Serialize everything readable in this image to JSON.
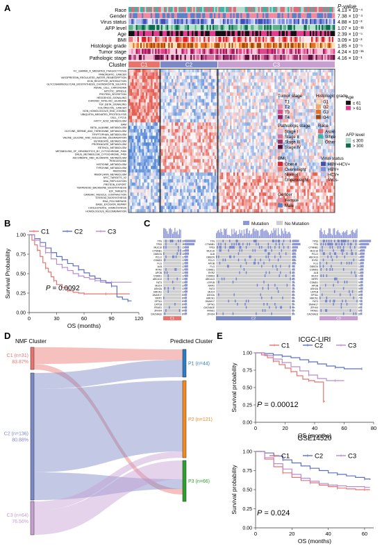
{
  "panels": {
    "A": "A",
    "B": "B",
    "C": "C",
    "D": "D",
    "E": "E"
  },
  "panel_a": {
    "pvalue_header": "P-value",
    "annotation_rows": [
      {
        "name": "Race",
        "pvalue": "4.13 × 10⁻⁴"
      },
      {
        "name": "Gender",
        "pvalue": "7.38 × 10⁻⁴"
      },
      {
        "name": "Virus status",
        "pvalue": "4.88 × 10⁻³"
      },
      {
        "name": "AFP level",
        "pvalue": "1.07 × 10⁻¹¹"
      },
      {
        "name": "Age",
        "pvalue": "2.39 × 10⁻⁵"
      },
      {
        "name": "BMI",
        "pvalue": "3.09 × 10⁻³"
      },
      {
        "name": "Histologic grade",
        "pvalue": "1.85 × 10⁻⁵"
      },
      {
        "name": "Tumor stage",
        "pvalue": "4.24 × 10⁻¹¹"
      },
      {
        "name": "Pathologic stage",
        "pvalue": "4.16 × 10⁻¹"
      }
    ],
    "cluster_label": "Cluster",
    "clusters": [
      {
        "name": "C1",
        "color": "#e8736c"
      },
      {
        "name": "C2",
        "color": "#7b88c6"
      },
      {
        "name": "C3",
        "color": "#c69ed2"
      }
    ],
    "pathways": [
      "FC_GAMMA_R_MEDIATED_PHAGOCYTOSIS",
      "PANCREATIC_CANCER",
      "VASOPRESSIN_REGULATED_WATER_REABSORPTION",
      "ECM_RECEPTOR_INTERACTION",
      "GLYCOSAMINOGLYCAN_BIOSYNTHESIS_CHONDROITIN_SULFATE",
      "RENAL_CELL_CARCINOMA",
      "MITOTIC_SPINDLE",
      "PROTEIN_SECRETION",
      "HEDGEHOG_SIGNALING",
      "CHRONIC_MYELOID_LEUKEMIA",
      "TGF_BETA_SIGNALING",
      "COLORECTAL_CANCER",
      "NON_HOMOLOGOUS_END_JOINING",
      "UBIQUITIN_MEDIATED_PROTEOLYSIS",
      "CELL_CYCLE",
      "FATTY_ACID_METABOLISM",
      "BAM",
      "BETA_ALANINE_METABOLISM",
      "GLYCINE_SERINE_AND_THREONINE_METABOLISM",
      "TRYPTOPHAN_METABOLISM",
      "VALINE_LEUCINE_AND_ISOLEUCINE_DEGRADATION",
      "BUTANOATE_METABOLISM",
      "PROPANOATE_METABOLISM",
      "RETINOL_METABOLISM",
      "METABOLISM_OF_XENOBIOTICS_BY_CYTOCHROME_P450",
      "DRUG_METABOLISM_CYTOCHROME_P450",
      "ASCORBATE_AND_ALDARATE_METABOLISM",
      "PEROXISOME",
      "HISTIDINE_METABOLISM",
      "TYROSINE_METABOLISM",
      "RIBOSOME",
      "RIBOFLAVIN_METABOLISM",
      "MYC_TARGETS_V2",
      "DNA_REPLICATION",
      "PROTEIN_EXPORT",
      "TERPENOID_BACKBONE_BIOSYNTHESIS",
      "E2F_TARGETS",
      "CARDIAC_MUSCLE_CONTRACTION",
      "STEROID_BIOSYNTHESIS",
      "RNA_POLYMERASE",
      "BASE_EXCISION_REPAIR",
      "CHOLESTEROL_HOMEOSTASIS",
      "HOMOLOGOUS_RECOMBINATION"
    ],
    "legends": [
      {
        "title": "Tumor stage",
        "items": [
          {
            "label": "T1",
            "color": "#f9c9dc"
          },
          {
            "label": "T2",
            "color": "#f08ab5"
          },
          {
            "label": "T3",
            "color": "#e0478c"
          },
          {
            "label": "T4",
            "color": "#9d1a5c"
          }
        ]
      },
      {
        "title": "Histologic grade",
        "items": [
          {
            "label": "G1",
            "color": "#fde0b8"
          },
          {
            "label": "G2",
            "color": "#f8a65c"
          },
          {
            "label": "G3",
            "color": "#e8701f"
          },
          {
            "label": "G4",
            "color": "#a34a0a"
          }
        ]
      },
      {
        "title": "Age",
        "items": [
          {
            "label": "≤ 61",
            "color": "#111111"
          },
          {
            "label": "> 61",
            "color": "#e23c8e"
          }
        ]
      },
      {
        "title": "Pathologic stage",
        "items": [
          {
            "label": "Stage I",
            "color": "#f3b6d2"
          },
          {
            "label": "Stage II",
            "color": "#d46c9f"
          },
          {
            "label": "Stage III",
            "color": "#99306b"
          },
          {
            "label": "Stage IV",
            "color": "#5a0f3b"
          }
        ]
      },
      {
        "title": "Race",
        "items": [
          {
            "label": "Asian",
            "color": "#e2697a"
          },
          {
            "label": "White",
            "color": "#3eb3a5"
          },
          {
            "label": "Other",
            "color": "#b6d8cb"
          }
        ]
      },
      {
        "title": "AFP level",
        "items": [
          {
            "label": "≤ 300",
            "color": "#b3e3cc"
          },
          {
            "label": "> 300",
            "color": "#0e6b4f"
          }
        ]
      },
      {
        "title": "BMI",
        "items": [
          {
            "label": "Obese",
            "color": "#e01f28"
          },
          {
            "label": "Overweight",
            "color": "#f07a7a"
          },
          {
            "label": "Normal",
            "color": "#f9c4c4"
          },
          {
            "label": "Underweight",
            "color": "#fde9e9"
          }
        ]
      },
      {
        "title": "Virus status",
        "items": [
          {
            "label": "HBV+HCV+",
            "color": "#3f51b5"
          },
          {
            "label": "HBV+",
            "color": "#7c8de0"
          },
          {
            "label": "HCV+",
            "color": "#b5c0f0"
          },
          {
            "label": "Virus-",
            "color": "#e3e7fa"
          }
        ]
      },
      {
        "title": "Gender",
        "items": [
          {
            "label": "Female",
            "color": "#f08aa0"
          },
          {
            "label": "Male",
            "color": "#5b80c7"
          }
        ]
      }
    ]
  },
  "chart_data": [
    {
      "type": "line",
      "panel": "B",
      "xlabel": "OS (months)",
      "ylabel": "Survival Probability",
      "xlim": [
        0,
        120
      ],
      "ylim": [
        0,
        1
      ],
      "xticks": [
        0,
        30,
        60,
        90,
        120
      ],
      "yticks": [
        0,
        0.25,
        0.5,
        0.75,
        1
      ],
      "legend_position": "top",
      "annotation": "P = 0.0092",
      "series": [
        {
          "name": "C1",
          "color": "#e8736c",
          "x": [
            0,
            3,
            6,
            9,
            12,
            15,
            18,
            21,
            24,
            27,
            30,
            36,
            42,
            48,
            54,
            60,
            66,
            72,
            84,
            90,
            110
          ],
          "y": [
            1,
            0.93,
            0.87,
            0.8,
            0.72,
            0.64,
            0.57,
            0.52,
            0.46,
            0.41,
            0.36,
            0.32,
            0.28,
            0.26,
            0.25,
            0.24,
            0.24,
            0.24,
            0.24,
            0.24,
            0.24
          ]
        },
        {
          "name": "C2",
          "color": "#5b6fbf",
          "x": [
            0,
            6,
            12,
            18,
            24,
            30,
            36,
            42,
            48,
            54,
            60,
            66,
            72,
            78,
            84,
            90,
            96,
            102,
            108,
            112
          ],
          "y": [
            1,
            0.95,
            0.9,
            0.83,
            0.77,
            0.72,
            0.68,
            0.63,
            0.6,
            0.55,
            0.51,
            0.47,
            0.44,
            0.41,
            0.38,
            0.34,
            0.2,
            0.17,
            0.15,
            0.15
          ]
        },
        {
          "name": "C3",
          "color": "#b98ad0",
          "x": [
            0,
            6,
            12,
            18,
            24,
            30,
            36,
            42,
            48,
            54,
            60,
            66,
            72,
            78,
            84,
            90,
            96,
            112
          ],
          "y": [
            1,
            0.93,
            0.85,
            0.77,
            0.69,
            0.62,
            0.58,
            0.54,
            0.5,
            0.47,
            0.45,
            0.43,
            0.41,
            0.39,
            0.39,
            0.39,
            0.39,
            0.39
          ]
        }
      ]
    },
    {
      "type": "line",
      "panel": "E-top",
      "title": "ICGC-LIRI",
      "xlabel": "OS (months)",
      "ylabel": "Survival probability",
      "xlim": [
        0,
        80
      ],
      "ylim": [
        0,
        1
      ],
      "xticks": [
        0,
        20,
        40,
        60,
        80
      ],
      "yticks": [
        0,
        0.25,
        0.5,
        0.75,
        1
      ],
      "legend_position": "top",
      "annotation": "P = 0.00012",
      "series": [
        {
          "name": "C1",
          "color": "#e8736c",
          "x": [
            0,
            4,
            8,
            12,
            16,
            20,
            24,
            28,
            32,
            36,
            40,
            44,
            46,
            47
          ],
          "y": [
            1,
            0.97,
            0.93,
            0.88,
            0.83,
            0.78,
            0.73,
            0.67,
            0.62,
            0.6,
            0.58,
            0.58,
            0.3,
            0.3
          ]
        },
        {
          "name": "C2",
          "color": "#5b6fbf",
          "x": [
            0,
            6,
            12,
            18,
            24,
            30,
            36,
            42,
            48,
            54,
            60,
            66,
            72
          ],
          "y": [
            1,
            0.99,
            0.97,
            0.95,
            0.93,
            0.9,
            0.87,
            0.84,
            0.81,
            0.79,
            0.77,
            0.77,
            0.77
          ]
        },
        {
          "name": "C3",
          "color": "#b98ad0",
          "x": [
            0,
            6,
            12,
            18,
            24,
            30,
            36,
            42,
            48,
            54,
            60
          ],
          "y": [
            1,
            0.96,
            0.91,
            0.86,
            0.8,
            0.74,
            0.68,
            0.63,
            0.6,
            0.6,
            0.6
          ]
        }
      ]
    },
    {
      "type": "line",
      "panel": "E-bottom",
      "title": "GSE14520",
      "xlabel": "OS (months)",
      "ylabel": "Survival probability",
      "xlim": [
        0,
        65
      ],
      "ylim": [
        0,
        1
      ],
      "xticks": [
        0,
        20,
        40,
        60
      ],
      "yticks": [
        0,
        0.25,
        0.5,
        0.75,
        1
      ],
      "legend_position": "top",
      "annotation": "P = 0.024",
      "series": [
        {
          "name": "C1",
          "color": "#e8736c",
          "x": [
            0,
            5,
            10,
            15,
            20,
            25,
            30,
            35,
            40,
            45,
            50,
            55,
            60,
            63
          ],
          "y": [
            1,
            0.9,
            0.8,
            0.72,
            0.66,
            0.62,
            0.59,
            0.56,
            0.54,
            0.52,
            0.51,
            0.5,
            0.5,
            0.5
          ]
        },
        {
          "name": "C2",
          "color": "#5b6fbf",
          "x": [
            0,
            5,
            10,
            15,
            20,
            25,
            30,
            35,
            40,
            45,
            50,
            55,
            60,
            63
          ],
          "y": [
            1,
            0.98,
            0.94,
            0.89,
            0.85,
            0.81,
            0.78,
            0.75,
            0.72,
            0.7,
            0.68,
            0.66,
            0.64,
            0.63
          ]
        },
        {
          "name": "C3",
          "color": "#b98ad0",
          "x": [
            0,
            5,
            10,
            15,
            20,
            25,
            30,
            35,
            40,
            45,
            50,
            55,
            60,
            63
          ],
          "y": [
            1,
            0.92,
            0.84,
            0.77,
            0.7,
            0.65,
            0.61,
            0.58,
            0.56,
            0.55,
            0.54,
            0.54,
            0.53,
            0.53
          ]
        }
      ]
    }
  ],
  "panel_c": {
    "legend_mutation": "Mutation",
    "legend_no_mutation": "No Mutation",
    "subpanels": [
      {
        "cluster": "C1",
        "color": "#e8736c",
        "genes": [
          "TTN",
          "TP53",
          "MUC16",
          "CTNNB1",
          "OBSCN",
          "PCLO",
          "CSMD3",
          "FLG",
          "ALB",
          "RYR2",
          "APOB",
          "CSMD1",
          "ABCA13",
          "FAT3",
          "MUC4",
          "USH2A",
          "HMCN1",
          "DNAH17",
          "XIRP2",
          "SPTA1",
          "LRP1B",
          "FRAS1",
          "ZFHX4",
          "CACNA1E"
        ],
        "pct": [
          "39%",
          "35%",
          "15%",
          "15%",
          "15%",
          "12%",
          "12%",
          "12%",
          "12%",
          "12%",
          "12%",
          "12%",
          "10%",
          "10%",
          "10%",
          "10%",
          "10%",
          "8%",
          "8%",
          "8%",
          "8%",
          "8%",
          "8%",
          "8%"
        ]
      },
      {
        "cluster": "C2",
        "color": "#7b88c6",
        "genes": [
          "TTN",
          "CTNNB1",
          "TP53",
          "MUC16",
          "ALB",
          "OBSCN",
          "PCLO",
          "APOB",
          "FLG",
          "CSMD1",
          "RYR2",
          "CSMD3",
          "ABCA13",
          "LRP1B",
          "XIRP2",
          "FAT3",
          "MUC4",
          "USH2A",
          "HMCN1",
          "DNAH17",
          "SPTA1",
          "CACNA1E",
          "FRAS1",
          "ZFHX4"
        ],
        "pct": [
          "24%",
          "29%",
          "20%",
          "15%",
          "12%",
          "13%",
          "10%",
          "10%",
          "9%",
          "9%",
          "8%",
          "8%",
          "8%",
          "7%",
          "7%",
          "7%",
          "6%",
          "6%",
          "6%",
          "6%",
          "5%",
          "5%",
          "5%",
          "5%"
        ]
      },
      {
        "cluster": "C3",
        "color": "#c69ed2",
        "genes": [
          "TP53",
          "TTN",
          "CTNNB1",
          "MUC16",
          "PCLO",
          "ABCA13",
          "RYR2",
          "FLG",
          "OBSCN",
          "CSMD3",
          "ALB",
          "MUC4",
          "XIRP2",
          "CSMD1",
          "APOB",
          "USH2A",
          "LRP1B",
          "SPTA1",
          "HMCN1",
          "FAT3",
          "DNAH17",
          "ZFHX4",
          "FRAS1",
          "CACNA1E"
        ],
        "pct": [
          "38%",
          "31%",
          "21%",
          "16%",
          "15%",
          "14%",
          "14%",
          "12%",
          "12%",
          "11%",
          "11%",
          "10%",
          "10%",
          "9%",
          "9%",
          "9%",
          "8%",
          "8%",
          "7%",
          "7%",
          "7%",
          "6%",
          "6%",
          "6%"
        ]
      }
    ]
  },
  "panel_d": {
    "left_title": "NMF Cluster",
    "right_title": "Predicted Cluster",
    "left": [
      {
        "name": "C1 (n=31)",
        "pct": "83.87%",
        "color": "#e8736c"
      },
      {
        "name": "C2 (n=136)",
        "pct": "80.88%",
        "color": "#7b88c6"
      },
      {
        "name": "C3 (n=64)",
        "pct": "76.56%",
        "color": "#c69ed2"
      }
    ],
    "right": [
      {
        "name": "P1 (n=44)",
        "color": "#2b7cc0"
      },
      {
        "name": "P2 (n=121)",
        "color": "#f08a1f"
      },
      {
        "name": "P3 (n=66)",
        "color": "#2ca02c"
      }
    ]
  }
}
